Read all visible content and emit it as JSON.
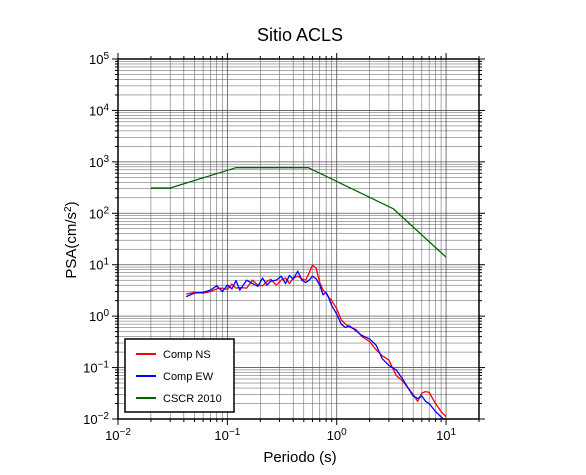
{
  "chart_data": {
    "type": "line",
    "title": "Sitio ACLS",
    "xlabel": "Periodo (s)",
    "ylabel": "PSA(cm/s2)",
    "ylabel_base": "PSA(cm/s",
    "ylabel_sup": "2",
    "ylabel_close": ")",
    "x_scale": "log",
    "y_scale": "log",
    "xlim": [
      0.01,
      20
    ],
    "ylim": [
      0.01,
      100000
    ],
    "grid": true,
    "legend_position": "bottom-left",
    "x_ticks": [
      {
        "value": 0.01,
        "base": "10",
        "exp": "−2"
      },
      {
        "value": 0.1,
        "base": "10",
        "exp": "−1"
      },
      {
        "value": 1,
        "base": "10",
        "exp": "0"
      },
      {
        "value": 10,
        "base": "10",
        "exp": "1"
      }
    ],
    "y_ticks": [
      {
        "value": 0.01,
        "base": "10",
        "exp": "−2"
      },
      {
        "value": 0.1,
        "base": "10",
        "exp": "−1"
      },
      {
        "value": 1,
        "base": "10",
        "exp": "0"
      },
      {
        "value": 10,
        "base": "10",
        "exp": "1"
      },
      {
        "value": 100,
        "base": "10",
        "exp": "2"
      },
      {
        "value": 1000,
        "base": "10",
        "exp": "3"
      },
      {
        "value": 10000,
        "base": "10",
        "exp": "4"
      },
      {
        "value": 100000,
        "base": "10",
        "exp": "5"
      }
    ],
    "series": [
      {
        "name": "Comp NS",
        "color": "#ff0000",
        "x": [
          0.042,
          0.05,
          0.06,
          0.07,
          0.08,
          0.09,
          0.1,
          0.11,
          0.12,
          0.13,
          0.15,
          0.17,
          0.19,
          0.21,
          0.23,
          0.25,
          0.28,
          0.31,
          0.34,
          0.37,
          0.4,
          0.44,
          0.48,
          0.52,
          0.56,
          0.6,
          0.65,
          0.7,
          0.75,
          0.8,
          0.85,
          0.9,
          1.0,
          1.1,
          1.2,
          1.3,
          1.5,
          1.7,
          2.0,
          2.3,
          2.6,
          3.0,
          3.5,
          4.0,
          4.5,
          5.0,
          5.5,
          6.0,
          6.5,
          7.0,
          8.0,
          9.0,
          10.0
        ],
        "y": [
          2.7,
          2.9,
          2.8,
          3.0,
          3.4,
          3.5,
          3.3,
          4.2,
          3.5,
          3.6,
          3.5,
          5.0,
          4.0,
          3.9,
          4.7,
          5.2,
          4.0,
          5.0,
          5.5,
          4.3,
          5.5,
          6.0,
          5.3,
          5.0,
          7.0,
          9.8,
          8.5,
          4.5,
          3.2,
          2.8,
          2.3,
          2.0,
          1.4,
          0.85,
          0.7,
          0.62,
          0.55,
          0.4,
          0.32,
          0.22,
          0.17,
          0.14,
          0.07,
          0.055,
          0.04,
          0.03,
          0.022,
          0.032,
          0.034,
          0.033,
          0.02,
          0.014,
          0.011
        ]
      },
      {
        "name": "Comp EW",
        "color": "#0000ff",
        "x": [
          0.042,
          0.05,
          0.06,
          0.07,
          0.08,
          0.09,
          0.1,
          0.11,
          0.12,
          0.13,
          0.15,
          0.17,
          0.19,
          0.21,
          0.23,
          0.25,
          0.28,
          0.31,
          0.34,
          0.37,
          0.4,
          0.44,
          0.48,
          0.52,
          0.56,
          0.6,
          0.65,
          0.7,
          0.75,
          0.8,
          0.85,
          0.9,
          1.0,
          1.1,
          1.2,
          1.3,
          1.5,
          1.7,
          2.0,
          2.3,
          2.6,
          3.0,
          3.5,
          4.0,
          4.5,
          5.0,
          5.5,
          6.0,
          6.5,
          7.0,
          8.0,
          9.0,
          10.0
        ],
        "y": [
          2.4,
          2.8,
          2.9,
          3.2,
          3.9,
          3.0,
          4.0,
          3.4,
          4.9,
          3.2,
          5.0,
          4.3,
          3.8,
          5.5,
          4.0,
          4.8,
          5.0,
          6.0,
          4.3,
          6.2,
          5.2,
          7.5,
          5.0,
          4.5,
          5.0,
          6.0,
          5.3,
          4.0,
          2.6,
          2.9,
          2.2,
          1.6,
          1.1,
          0.7,
          0.6,
          0.65,
          0.52,
          0.42,
          0.36,
          0.27,
          0.15,
          0.11,
          0.09,
          0.06,
          0.04,
          0.028,
          0.025,
          0.028,
          0.022,
          0.02,
          0.014,
          0.011,
          0.009
        ]
      },
      {
        "name": "CSCR 2010",
        "color": "#006400",
        "x": [
          0.02,
          0.03,
          0.12,
          0.55,
          3.3,
          10.0
        ],
        "y": [
          310,
          310,
          770,
          770,
          122,
          14
        ]
      }
    ]
  }
}
